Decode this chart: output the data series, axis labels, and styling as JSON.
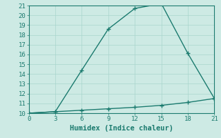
{
  "xlabel": "Humidex (Indice chaleur)",
  "background_color": "#cdeae4",
  "grid_color": "#a8d5cc",
  "line_color": "#1a7a6e",
  "spine_color": "#1a7a6e",
  "xlim": [
    0,
    21
  ],
  "ylim": [
    10,
    21
  ],
  "xticks": [
    0,
    3,
    6,
    9,
    12,
    15,
    18,
    21
  ],
  "yticks": [
    10,
    11,
    12,
    13,
    14,
    15,
    16,
    17,
    18,
    19,
    20,
    21
  ],
  "series1_x": [
    0,
    3,
    6,
    9,
    12,
    15,
    18,
    21
  ],
  "series1_y": [
    10.0,
    10.15,
    10.3,
    10.45,
    10.6,
    10.8,
    11.1,
    11.5
  ],
  "series2_x": [
    0,
    3,
    6,
    9,
    12,
    15,
    18,
    21
  ],
  "series2_y": [
    10.0,
    10.15,
    14.4,
    18.6,
    20.7,
    21.2,
    16.1,
    11.5
  ],
  "marker": "+",
  "marker_size": 5,
  "marker_linewidth": 1.0,
  "linewidth": 1.0,
  "tick_labelsize": 6.5,
  "xlabel_fontsize": 7.5
}
